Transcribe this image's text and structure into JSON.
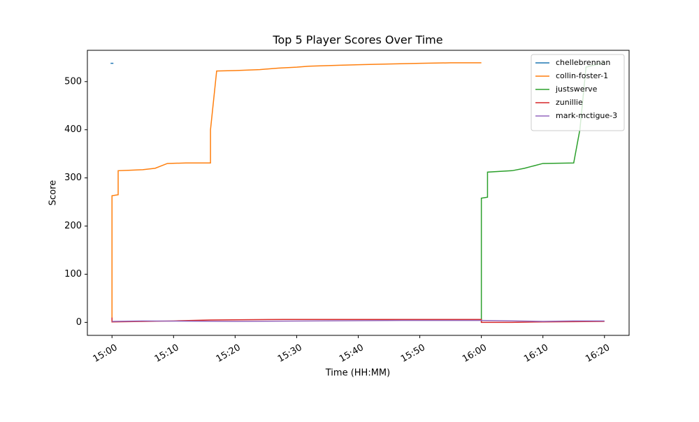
{
  "chart_data": {
    "type": "line",
    "title": "Top 5 Player Scores Over Time",
    "x_label": "Time (HH:MM)",
    "y_label": "Score",
    "xlim": [
      "14:56",
      "16:24"
    ],
    "xticks": [
      "15:00",
      "15:10",
      "15:20",
      "15:30",
      "15:40",
      "15:50",
      "16:00",
      "16:10",
      "16:20"
    ],
    "ylim": [
      -27,
      565
    ],
    "yticks": [
      0,
      100,
      200,
      300,
      400,
      500
    ],
    "grid": false,
    "legend": "upper right",
    "series": [
      {
        "name": "chellebrennan",
        "color": "#1f77b4",
        "x": [
          "15:00"
        ],
        "values": [
          538
        ]
      },
      {
        "name": "collin-foster-1",
        "color": "#ff7f0e",
        "x": [
          "15:00",
          "15:00",
          "15:01",
          "15:01",
          "15:03",
          "15:05",
          "15:07",
          "15:09",
          "15:12",
          "15:16",
          "15:16",
          "15:17",
          "15:20",
          "15:24",
          "15:27",
          "15:30",
          "15:32",
          "15:37",
          "15:43",
          "15:50",
          "15:55",
          "16:00"
        ],
        "values": [
          5,
          263,
          265,
          315,
          316,
          317,
          320,
          330,
          331,
          331,
          400,
          522,
          523,
          525,
          528,
          530,
          532,
          534,
          536,
          538,
          539,
          539
        ]
      },
      {
        "name": "justswerve",
        "color": "#2ca02c",
        "x": [
          "16:00",
          "16:00",
          "16:01",
          "16:01",
          "16:05",
          "16:07",
          "16:10",
          "16:15",
          "16:16",
          "16:17",
          "16:20"
        ],
        "values": [
          0,
          258,
          260,
          312,
          315,
          320,
          330,
          331,
          400,
          530,
          540
        ]
      },
      {
        "name": "zunillie",
        "color": "#d62728",
        "x": [
          "15:00",
          "15:00",
          "15:10",
          "15:16",
          "15:28",
          "16:00",
          "16:00",
          "16:05",
          "16:10",
          "16:20"
        ],
        "values": [
          10,
          1,
          3,
          5,
          6,
          6,
          0,
          0,
          1,
          2
        ]
      },
      {
        "name": "mark-mctigue-3",
        "color": "#9467bd",
        "x": [
          "15:00",
          "15:05",
          "15:20",
          "15:47",
          "16:00",
          "16:10",
          "16:15",
          "16:20"
        ],
        "values": [
          2,
          3,
          2,
          4,
          4,
          2,
          3,
          3
        ]
      }
    ]
  }
}
